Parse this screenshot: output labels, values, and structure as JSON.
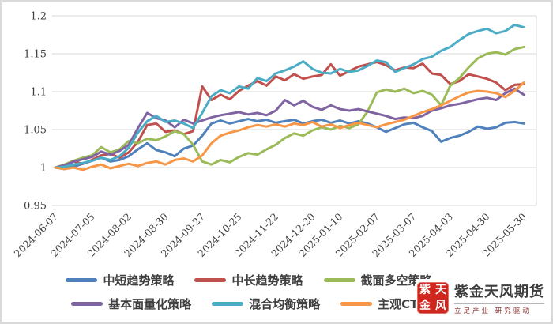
{
  "chart_data": {
    "type": "line",
    "title": "",
    "xlabel": "",
    "ylabel": "",
    "grid": true,
    "grid_color": "#d9d9d9",
    "axis_text_color": "#404040",
    "legend_position": "bottom",
    "ylim": [
      0.95,
      1.2
    ],
    "y_ticks": [
      {
        "label": "1.2",
        "value": 1.2
      },
      {
        "label": "1.15",
        "value": 1.15
      },
      {
        "label": "1.1",
        "value": 1.1
      },
      {
        "label": "1.05",
        "value": 1.05
      },
      {
        "label": "1",
        "value": 1.0
      },
      {
        "label": "0.95",
        "value": 0.95
      }
    ],
    "n_points": 52,
    "x_tick_labels": [
      "2024-06-07",
      "2024-07-05",
      "2024-08-02",
      "2024-08-30",
      "2024-09-27",
      "2024-10-25",
      "2024-11-22",
      "2024-12-20",
      "2025-01-10",
      "2025-02-07",
      "2025-03-07",
      "2025-04-03",
      "2025-04-30",
      "2025-05-30"
    ],
    "x_tick_indices": [
      0,
      4,
      8,
      12,
      16,
      20,
      24,
      28,
      31,
      35,
      39,
      43,
      47,
      51
    ],
    "series": [
      {
        "name": "中短趋势策略",
        "color": "#4F81BD",
        "values": [
          1.0,
          0.998,
          1.001,
          1.005,
          1.009,
          1.013,
          1.008,
          1.01,
          1.015,
          1.024,
          1.032,
          1.023,
          1.02,
          1.015,
          1.025,
          1.029,
          1.042,
          1.058,
          1.062,
          1.058,
          1.061,
          1.064,
          1.061,
          1.063,
          1.059,
          1.061,
          1.063,
          1.058,
          1.061,
          1.063,
          1.059,
          1.062,
          1.058,
          1.061,
          1.058,
          1.053,
          1.047,
          1.052,
          1.057,
          1.059,
          1.053,
          1.048,
          1.034,
          1.039,
          1.042,
          1.047,
          1.054,
          1.051,
          1.053,
          1.059,
          1.06,
          1.058
        ]
      },
      {
        "name": "中长趋势策略",
        "color": "#C0504D",
        "values": [
          1.0,
          1.002,
          1.008,
          1.005,
          1.01,
          1.016,
          1.018,
          1.013,
          1.02,
          1.034,
          1.056,
          1.058,
          1.047,
          1.049,
          1.044,
          1.048,
          1.107,
          1.089,
          1.096,
          1.09,
          1.101,
          1.108,
          1.114,
          1.108,
          1.12,
          1.115,
          1.123,
          1.117,
          1.12,
          1.122,
          1.136,
          1.121,
          1.127,
          1.133,
          1.136,
          1.139,
          1.135,
          1.128,
          1.132,
          1.131,
          1.137,
          1.124,
          1.122,
          1.11,
          1.114,
          1.123,
          1.12,
          1.117,
          1.112,
          1.102,
          1.109,
          1.11
        ]
      },
      {
        "name": "截面多空策略",
        "color": "#9BBB59",
        "values": [
          1.0,
          1.004,
          1.009,
          1.013,
          1.016,
          1.027,
          1.02,
          1.024,
          1.035,
          1.032,
          1.038,
          1.036,
          1.041,
          1.048,
          1.044,
          1.03,
          1.008,
          1.004,
          1.01,
          1.007,
          1.014,
          1.019,
          1.017,
          1.024,
          1.03,
          1.039,
          1.045,
          1.042,
          1.049,
          1.053,
          1.05,
          1.055,
          1.052,
          1.057,
          1.074,
          1.099,
          1.103,
          1.1,
          1.104,
          1.098,
          1.101,
          1.096,
          1.082,
          1.108,
          1.118,
          1.132,
          1.144,
          1.15,
          1.152,
          1.149,
          1.156,
          1.159
        ]
      },
      {
        "name": "基本面量化策略",
        "color": "#8064A2",
        "values": [
          1.0,
          1.003,
          1.008,
          1.011,
          1.014,
          1.021,
          1.017,
          1.022,
          1.03,
          1.052,
          1.072,
          1.065,
          1.062,
          1.053,
          1.063,
          1.058,
          1.062,
          1.066,
          1.069,
          1.071,
          1.073,
          1.07,
          1.072,
          1.069,
          1.075,
          1.089,
          1.082,
          1.088,
          1.08,
          1.076,
          1.082,
          1.077,
          1.075,
          1.077,
          1.074,
          1.071,
          1.068,
          1.064,
          1.066,
          1.065,
          1.068,
          1.075,
          1.078,
          1.082,
          1.084,
          1.087,
          1.09,
          1.092,
          1.089,
          1.098,
          1.104,
          1.096
        ]
      },
      {
        "name": "混合均衡策略",
        "color": "#4BACC6",
        "values": [
          1.0,
          1.001,
          1.004,
          1.006,
          1.009,
          1.013,
          1.01,
          1.015,
          1.026,
          1.046,
          1.061,
          1.068,
          1.06,
          1.062,
          1.058,
          1.052,
          1.072,
          1.094,
          1.102,
          1.098,
          1.107,
          1.104,
          1.118,
          1.114,
          1.124,
          1.128,
          1.133,
          1.14,
          1.13,
          1.125,
          1.124,
          1.13,
          1.126,
          1.128,
          1.134,
          1.141,
          1.139,
          1.126,
          1.131,
          1.136,
          1.143,
          1.146,
          1.154,
          1.159,
          1.168,
          1.176,
          1.18,
          1.183,
          1.177,
          1.18,
          1.188,
          1.185
        ]
      },
      {
        "name": "主观CTA",
        "color": "#F79646",
        "values": [
          1.0,
          0.998,
          1.0,
          0.997,
          1.001,
          1.004,
          0.999,
          1.002,
          1.005,
          1.002,
          1.006,
          1.008,
          1.004,
          1.01,
          1.012,
          1.008,
          1.016,
          1.032,
          1.042,
          1.046,
          1.049,
          1.053,
          1.056,
          1.054,
          1.057,
          1.054,
          1.058,
          1.056,
          1.06,
          1.054,
          1.057,
          1.052,
          1.056,
          1.059,
          1.056,
          1.053,
          1.057,
          1.06,
          1.063,
          1.068,
          1.073,
          1.077,
          1.082,
          1.088,
          1.094,
          1.099,
          1.101,
          1.1,
          1.098,
          1.093,
          1.101,
          1.112
        ]
      }
    ]
  },
  "branding": {
    "seal_chars": [
      "紫",
      "天",
      "金",
      "风"
    ],
    "seal_color": "#cf271e",
    "company_name": "紫金天风期货",
    "tagline": "立足产业 研究驱动"
  }
}
